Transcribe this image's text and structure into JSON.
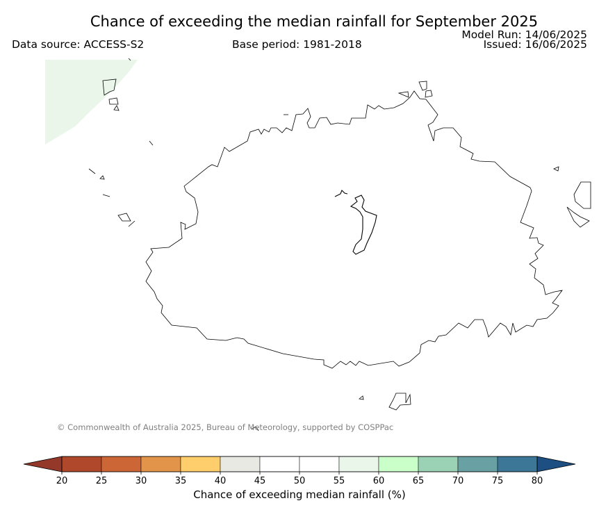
{
  "title": "Chance of exceeding the median rainfall for September 2025",
  "data_source": "Data source: ACCESS-S2",
  "base_period": "Base period: 1981-2018",
  "model_run": "Model Run: 14/06/2025",
  "issued": "Issued: 16/06/2025",
  "copyright": "© Commonwealth of Australia 2025, Bureau of Meteorology, supported by COSPPac",
  "colorbar": {
    "label": "Chance of exceeding median rainfall (%)",
    "ticks": [
      "20",
      "25",
      "30",
      "35",
      "40",
      "45",
      "50",
      "55",
      "60",
      "65",
      "70",
      "75",
      "80"
    ],
    "colors": [
      "#b0492c",
      "#cd6637",
      "#e3944b",
      "#fdce6b",
      "#e9e9e4",
      "#ffffff",
      "#ffffff",
      "#eaf6ea",
      "#caffca",
      "#9bd1b4",
      "#68a0a4",
      "#3c7797"
    ],
    "under_color": "#94382a",
    "over_color": "#1d4f83"
  },
  "map": {
    "shaded_area_color": "#eaf6ea",
    "coastline_color": "#000000"
  }
}
